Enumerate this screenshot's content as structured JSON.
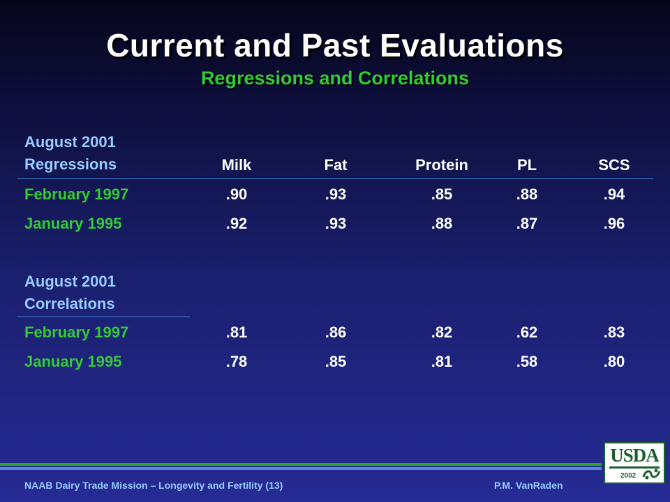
{
  "title": "Current and Past Evaluations",
  "subtitle": "Regressions and Correlations",
  "columns": [
    "Milk",
    "Fat",
    "Protein",
    "PL",
    "SCS"
  ],
  "regressions": {
    "label_line1": "August 2001",
    "label_line2": "Regressions",
    "rows": [
      {
        "label": "February 1997",
        "values": [
          ".90",
          ".93",
          ".85",
          ".88",
          ".94"
        ]
      },
      {
        "label": "January 1995",
        "values": [
          ".92",
          ".93",
          ".88",
          ".87",
          ".96"
        ]
      }
    ]
  },
  "correlations": {
    "label_line1": "August 2001",
    "label_line2": "Correlations",
    "rows": [
      {
        "label": "February 1997",
        "values": [
          ".81",
          ".86",
          ".82",
          ".62",
          ".83"
        ]
      },
      {
        "label": "January 1995",
        "values": [
          ".78",
          ".85",
          ".81",
          ".58",
          ".80"
        ]
      }
    ]
  },
  "footer": {
    "left": "NAAB Dairy  Trade Mission – Longevity and Fertility (13)",
    "right": "P.M. VanRaden"
  },
  "logo": {
    "text": "USDA",
    "year": "2002"
  },
  "colors": {
    "accent_green": "#33cc33",
    "label_blue": "#99ccff",
    "rule_blue": "#3d8ce0"
  }
}
